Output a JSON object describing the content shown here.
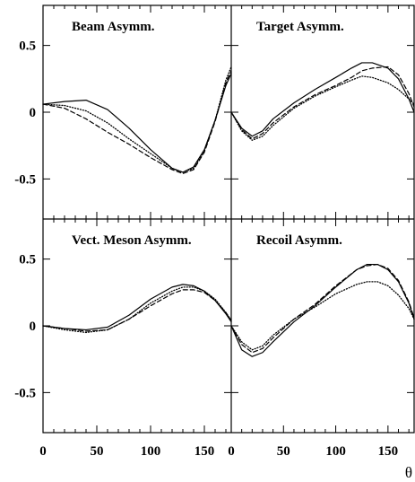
{
  "chart_data": {
    "type": "line",
    "layout": "2x2 panel grid, shared axes",
    "xlabel": "θ",
    "xlim": [
      0,
      175
    ],
    "ylim": [
      -0.8,
      0.8
    ],
    "xticks": [
      0,
      50,
      100,
      150
    ],
    "xtick_labels_left": [
      "0",
      "50",
      "100",
      "150"
    ],
    "xtick_labels_right": [
      "0",
      "50",
      "100",
      "150"
    ],
    "yticks": [
      0.5,
      0,
      -0.5
    ],
    "ytick_labels": [
      "0.5",
      "0",
      "-0.5"
    ],
    "legend": "none",
    "grid": false,
    "line_styles": [
      "solid",
      "dashed",
      "dotted"
    ],
    "panels": [
      {
        "title": "Beam Asymm.",
        "position": "top-left",
        "series": [
          {
            "style": "solid",
            "x": [
              0,
              20,
              40,
              60,
              80,
              100,
              120,
              130,
              140,
              150,
              160,
              170,
              175
            ],
            "y": [
              0.06,
              0.08,
              0.09,
              0.02,
              -0.12,
              -0.28,
              -0.42,
              -0.45,
              -0.41,
              -0.28,
              -0.06,
              0.2,
              0.29
            ]
          },
          {
            "style": "dashed",
            "x": [
              0,
              20,
              40,
              60,
              80,
              100,
              120,
              130,
              140,
              150,
              160,
              170,
              175
            ],
            "y": [
              0.06,
              0.03,
              -0.05,
              -0.15,
              -0.24,
              -0.34,
              -0.43,
              -0.46,
              -0.43,
              -0.3,
              -0.07,
              0.22,
              0.31
            ]
          },
          {
            "style": "dotted",
            "x": [
              0,
              20,
              40,
              60,
              80,
              100,
              120,
              130,
              140,
              150,
              160,
              170,
              175
            ],
            "y": [
              0.06,
              0.05,
              0.01,
              -0.08,
              -0.2,
              -0.31,
              -0.42,
              -0.45,
              -0.42,
              -0.29,
              -0.06,
              0.24,
              0.34
            ]
          }
        ]
      },
      {
        "title": "Target Asymm.",
        "position": "top-right",
        "series": [
          {
            "style": "solid",
            "x": [
              0,
              10,
              20,
              30,
              40,
              60,
              80,
              100,
              115,
              125,
              135,
              150,
              160,
              170,
              175
            ],
            "y": [
              0,
              -0.12,
              -0.18,
              -0.14,
              -0.05,
              0.07,
              0.17,
              0.26,
              0.33,
              0.37,
              0.37,
              0.33,
              0.25,
              0.1,
              0.0
            ]
          },
          {
            "style": "dashed",
            "x": [
              0,
              10,
              20,
              30,
              40,
              60,
              80,
              100,
              115,
              125,
              135,
              150,
              160,
              170,
              175
            ],
            "y": [
              0,
              -0.13,
              -0.2,
              -0.16,
              -0.08,
              0.04,
              0.13,
              0.2,
              0.26,
              0.31,
              0.33,
              0.34,
              0.28,
              0.14,
              0.04
            ]
          },
          {
            "style": "dotted",
            "x": [
              0,
              10,
              20,
              30,
              40,
              60,
              80,
              100,
              115,
              125,
              135,
              150,
              160,
              170,
              175
            ],
            "y": [
              0,
              -0.14,
              -0.21,
              -0.18,
              -0.1,
              0.03,
              0.12,
              0.19,
              0.24,
              0.27,
              0.26,
              0.22,
              0.17,
              0.1,
              0.06
            ]
          }
        ]
      },
      {
        "title": "Vect. Meson Asymm.",
        "position": "bottom-left",
        "series": [
          {
            "style": "solid",
            "x": [
              0,
              20,
              40,
              60,
              80,
              100,
              120,
              130,
              140,
              150,
              160,
              170,
              175
            ],
            "y": [
              0,
              -0.02,
              -0.03,
              -0.01,
              0.08,
              0.2,
              0.29,
              0.31,
              0.3,
              0.26,
              0.19,
              0.09,
              0.03
            ]
          },
          {
            "style": "dashed",
            "x": [
              0,
              20,
              40,
              60,
              80,
              100,
              120,
              130,
              140,
              150,
              160,
              170,
              175
            ],
            "y": [
              0,
              -0.02,
              -0.04,
              -0.03,
              0.05,
              0.15,
              0.24,
              0.27,
              0.27,
              0.25,
              0.19,
              0.1,
              0.04
            ]
          },
          {
            "style": "dotted",
            "x": [
              0,
              20,
              40,
              60,
              80,
              100,
              120,
              130,
              140,
              150,
              160,
              170,
              175
            ],
            "y": [
              0,
              -0.03,
              -0.05,
              -0.03,
              0.05,
              0.17,
              0.26,
              0.29,
              0.29,
              0.26,
              0.2,
              0.1,
              0.04
            ]
          }
        ]
      },
      {
        "title": "Recoil Asymm.",
        "position": "bottom-right",
        "series": [
          {
            "style": "solid",
            "x": [
              0,
              10,
              20,
              30,
              40,
              60,
              80,
              100,
              120,
              130,
              140,
              150,
              160,
              170,
              175
            ],
            "y": [
              0,
              -0.18,
              -0.23,
              -0.2,
              -0.12,
              0.03,
              0.15,
              0.29,
              0.42,
              0.46,
              0.46,
              0.42,
              0.33,
              0.17,
              0.05
            ]
          },
          {
            "style": "dashed",
            "x": [
              0,
              10,
              20,
              30,
              40,
              60,
              80,
              100,
              120,
              130,
              140,
              150,
              160,
              170,
              175
            ],
            "y": [
              0,
              -0.14,
              -0.2,
              -0.17,
              -0.09,
              0.05,
              0.16,
              0.3,
              0.42,
              0.45,
              0.46,
              0.43,
              0.34,
              0.18,
              0.06
            ]
          },
          {
            "style": "dotted",
            "x": [
              0,
              10,
              20,
              30,
              40,
              60,
              80,
              100,
              120,
              130,
              140,
              150,
              160,
              170,
              175
            ],
            "y": [
              0,
              -0.12,
              -0.18,
              -0.15,
              -0.07,
              0.05,
              0.14,
              0.24,
              0.31,
              0.33,
              0.33,
              0.3,
              0.23,
              0.13,
              0.05
            ]
          }
        ]
      }
    ]
  }
}
